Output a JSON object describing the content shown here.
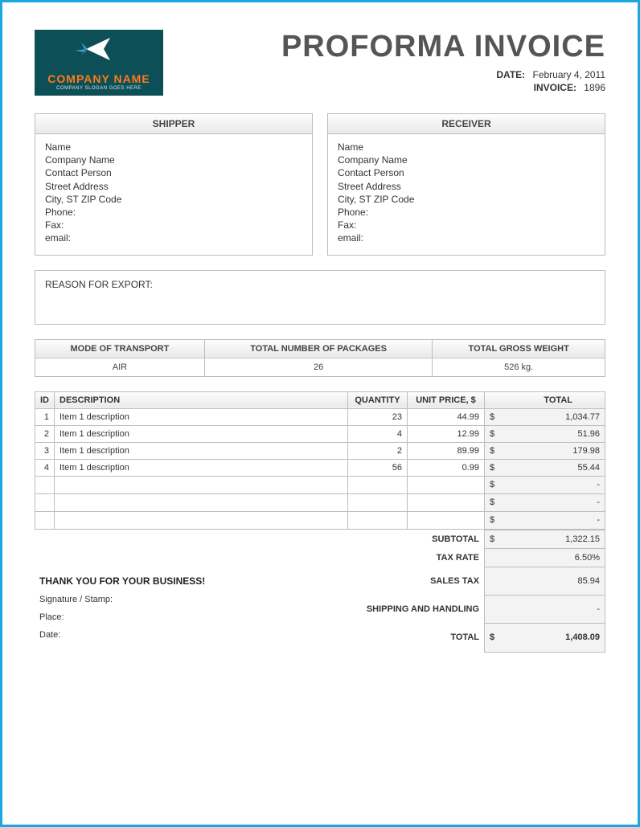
{
  "logo": {
    "name": "COMPANY NAME",
    "slogan": "COMPANY SLOGAN GOES HERE",
    "bg_color": "#0d4f56",
    "accent_color": "#ff7a1a",
    "icon_color": "#ffffff"
  },
  "title": "PROFORMA INVOICE",
  "meta": {
    "date_label": "DATE:",
    "date_value": "February 4, 2011",
    "invoice_label": "INVOICE:",
    "invoice_value": "1896"
  },
  "shipper": {
    "header": "SHIPPER",
    "lines": [
      "Name",
      "Company Name",
      "Contact Person",
      "Street Address",
      "City, ST  ZIP Code",
      "Phone:",
      "Fax:",
      "email:"
    ]
  },
  "receiver": {
    "header": "RECEIVER",
    "lines": [
      "Name",
      "Company Name",
      "Contact Person",
      "Street Address",
      "City, ST  ZIP Code",
      "Phone:",
      "Fax:",
      "email:"
    ]
  },
  "reason_label": "REASON FOR EXPORT:",
  "ship_info": {
    "headers": [
      "MODE OF TRANSPORT",
      "TOTAL NUMBER OF PACKAGES",
      "TOTAL GROSS WEIGHT"
    ],
    "values": [
      "AIR",
      "26",
      "526 kg."
    ]
  },
  "items_table": {
    "headers": {
      "id": "ID",
      "desc": "DESCRIPTION",
      "qty": "QUANTITY",
      "unit": "UNIT PRICE, $",
      "total": "TOTAL"
    },
    "currency": "$",
    "rows": [
      {
        "id": "1",
        "desc": "Item 1 description",
        "qty": "23",
        "unit": "44.99",
        "total": "1,034.77"
      },
      {
        "id": "2",
        "desc": "Item 1 description",
        "qty": "4",
        "unit": "12.99",
        "total": "51.96"
      },
      {
        "id": "3",
        "desc": "Item 1 description",
        "qty": "2",
        "unit": "89.99",
        "total": "179.98"
      },
      {
        "id": "4",
        "desc": "Item 1 description",
        "qty": "56",
        "unit": "0.99",
        "total": "55.44"
      }
    ],
    "empty_rows": 3,
    "empty_dash": "-"
  },
  "summary": {
    "subtotal_label": "SUBTOTAL",
    "subtotal_value": "1,322.15",
    "taxrate_label": "TAX RATE",
    "taxrate_value": "6.50%",
    "salestax_label": "SALES TAX",
    "salestax_value": "85.94",
    "shipping_label": "SHIPPING AND HANDLING",
    "shipping_value": "-",
    "total_label": "TOTAL",
    "total_value": "1,408.09",
    "currency": "$"
  },
  "footer": {
    "thanks": "THANK YOU FOR YOUR BUSINESS!",
    "signature": "Signature / Stamp:",
    "place": "Place:",
    "date": "Date:"
  },
  "colors": {
    "border_outer": "#1ba8e0",
    "cell_border": "#bdbdbd",
    "header_grad_top": "#fdfdfd",
    "header_grad_bot": "#e9e9e9",
    "shaded_cell": "#f3f3f3",
    "title_color": "#555555"
  }
}
